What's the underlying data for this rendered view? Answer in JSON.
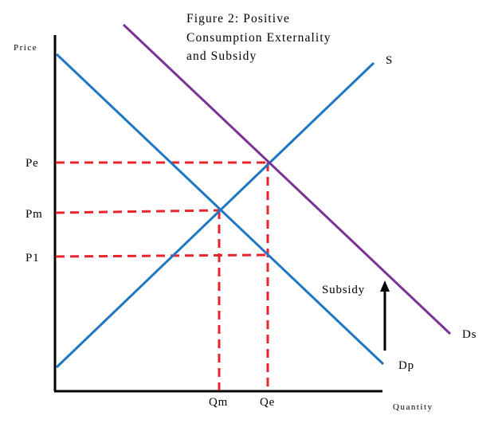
{
  "title_lines": [
    "Figure 2: Positive",
    "Consumption Externality",
    "and Subsidy"
  ],
  "axes": {
    "y_label": "Price",
    "x_label": "Quantity"
  },
  "price_ticks": [
    "Pe",
    "Pm",
    "P1"
  ],
  "quantity_ticks": [
    "Qm",
    "Qe"
  ],
  "curves": {
    "supply": "S",
    "social_demand": "Ds",
    "private_demand": "Dp"
  },
  "annotation": "Subsidy",
  "colors": {
    "supply": "#1f77c4",
    "private_demand": "#1f77c4",
    "social_demand": "#7b3294",
    "guides": "#e8252b",
    "axes": "#000000"
  }
}
